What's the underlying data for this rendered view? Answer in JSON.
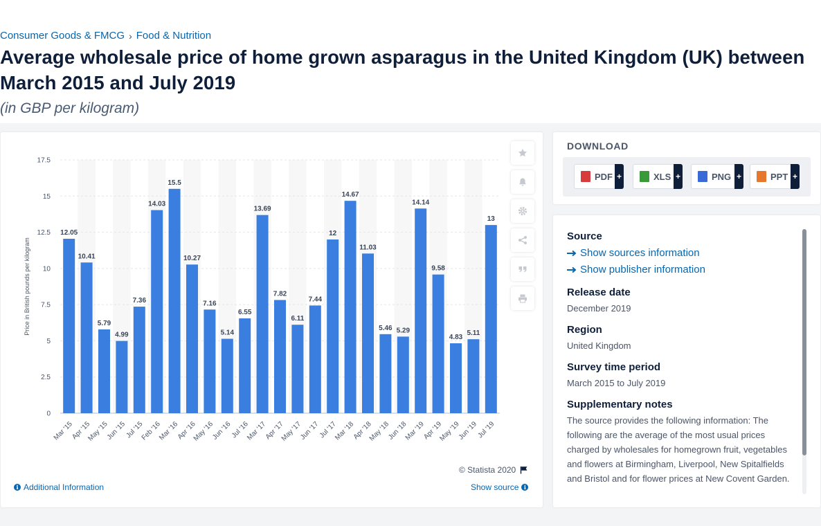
{
  "breadcrumb": {
    "item1": "Consumer Goods & FMCG",
    "item2": "Food & Nutrition",
    "separator": "›"
  },
  "title": "Average wholesale price of home grown asparagus in the United Kingdom (UK) between March 2015 and July 2019",
  "subtitle": "(in GBP per kilogram)",
  "chart_data": {
    "type": "bar",
    "categories": [
      "Mar '15",
      "Apr '15",
      "May '15",
      "Jun '15",
      "Jul '15",
      "Feb '16",
      "Mar '16",
      "Apr '16",
      "May '16",
      "Jun '16",
      "Jul '16",
      "Mar '17",
      "Apr '17",
      "May '17",
      "Jun '17",
      "Jul '17",
      "Mar '18",
      "Apr '18",
      "May '18",
      "Jun '18",
      "Mar '19",
      "Apr '19",
      "May '19",
      "Jun '19",
      "Jul '19"
    ],
    "values": [
      12.05,
      10.41,
      5.79,
      4.99,
      7.36,
      14.03,
      15.5,
      10.27,
      7.16,
      5.14,
      6.55,
      13.69,
      7.82,
      6.11,
      7.44,
      12,
      14.67,
      11.03,
      5.46,
      5.29,
      14.14,
      9.58,
      4.83,
      5.11,
      13
    ],
    "value_labels": [
      "12.05",
      "10.41",
      "5.79",
      "4.99",
      "7.36",
      "14.03",
      "15.5",
      "10.27",
      "7.16",
      "5.14",
      "6.55",
      "13.69",
      "7.82",
      "6.11",
      "7.44",
      "12",
      "14.67",
      "11.03",
      "5.46",
      "5.29",
      "14.14",
      "9.58",
      "4.83",
      "5.11",
      "13"
    ],
    "ylabel": "Price in British pounds per kilogram",
    "ylim": [
      0,
      17.5
    ],
    "yticks": [
      "0",
      "2.5",
      "5",
      "7.5",
      "10",
      "12.5",
      "15",
      "17.5"
    ],
    "bar_color": "#3a7ee0",
    "grid": true
  },
  "chart_footer": {
    "copyright": "© Statista 2020",
    "additional_info": "Additional Information",
    "show_source": "Show source"
  },
  "download": {
    "heading": "DOWNLOAD",
    "buttons": [
      {
        "label": "PDF",
        "color": "#d83b3b"
      },
      {
        "label": "XLS",
        "color": "#3a9a3a"
      },
      {
        "label": "PNG",
        "color": "#3a6ad8"
      },
      {
        "label": "PPT",
        "color": "#e8772e"
      }
    ],
    "plus": "+"
  },
  "details": {
    "source_heading": "Source",
    "show_sources": "Show sources information",
    "show_publisher": "Show publisher information",
    "release_heading": "Release date",
    "release_value": "December 2019",
    "region_heading": "Region",
    "region_value": "United Kingdom",
    "survey_heading": "Survey time period",
    "survey_value": "March 2015 to July 2019",
    "notes_heading": "Supplementary notes",
    "notes_value": "The source provides the following information: The following are the average of the most usual prices charged by wholesales for homegrown fruit, vegetables and flowers at Birmingham, Liverpool, New Spitalfields and Bristol and for flower prices at New Covent Garden."
  },
  "icons": [
    "star-icon",
    "bell-icon",
    "gear-icon",
    "share-icon",
    "quote-icon",
    "print-icon",
    "flag-icon",
    "info-icon",
    "arrow-right-icon"
  ]
}
